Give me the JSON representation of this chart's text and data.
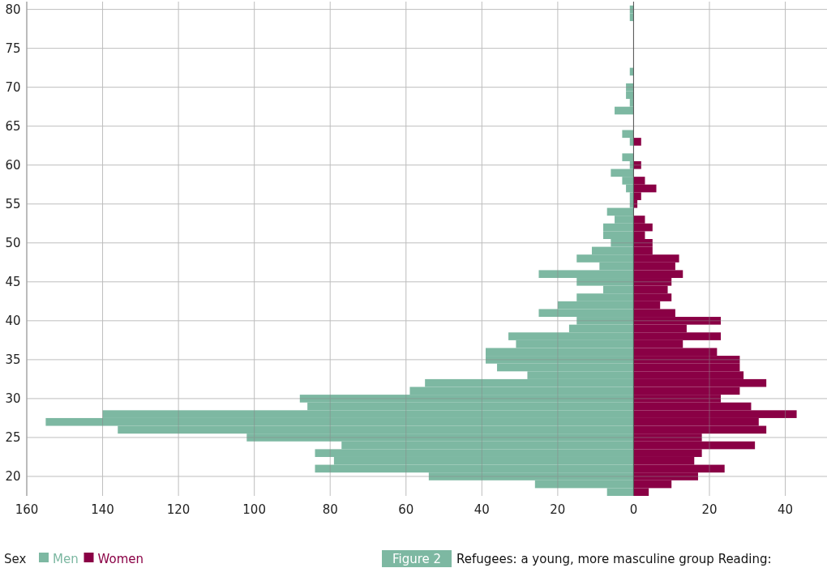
{
  "chart_data": {
    "type": "bar",
    "orientation": "horizontal",
    "stacked": true,
    "x": [
      18,
      19,
      20,
      21,
      22,
      23,
      24,
      25,
      26,
      27,
      28,
      29,
      30,
      31,
      32,
      33,
      34,
      35,
      36,
      37,
      38,
      39,
      40,
      41,
      42,
      43,
      44,
      45,
      46,
      47,
      48,
      49,
      50,
      51,
      52,
      53,
      54,
      55,
      56,
      57,
      58,
      59,
      60,
      61,
      62,
      63,
      64,
      65,
      66,
      67,
      68,
      69,
      70,
      71,
      72,
      73,
      74,
      75,
      76,
      77,
      78,
      79,
      80
    ],
    "series": [
      {
        "name": "Men",
        "color": "#7db8a2",
        "values": [
          -7,
          -26,
          -54,
          -84,
          -79,
          -84,
          -77,
          -102,
          -136,
          -155,
          -140,
          -86,
          -88,
          -59,
          -55,
          -28,
          -36,
          -39,
          -39,
          -31,
          -33,
          -17,
          -15,
          -25,
          -20,
          -15,
          -8,
          -15,
          -25,
          -9,
          -15,
          -11,
          -6,
          -8,
          -8,
          -5,
          -7,
          -1,
          -1,
          -2,
          -3,
          -6,
          -1,
          -3,
          null,
          -1,
          -3,
          null,
          null,
          -5,
          -1,
          -2,
          -2,
          null,
          -1,
          null,
          null,
          null,
          null,
          null,
          null,
          -1,
          -1
        ]
      },
      {
        "name": "Women",
        "color": "#8a0045",
        "values": [
          4,
          10,
          17,
          24,
          16,
          18,
          32,
          18,
          35,
          33,
          43,
          31,
          23,
          28,
          35,
          29,
          28,
          28,
          22,
          13,
          23,
          14,
          23,
          11,
          7,
          10,
          9,
          10,
          13,
          11,
          12,
          5,
          5,
          3,
          5,
          3,
          null,
          1,
          2,
          6,
          3,
          null,
          2,
          null,
          null,
          2,
          null,
          null,
          null,
          null,
          null,
          null,
          null,
          null,
          null,
          null,
          null,
          null,
          null,
          null,
          null,
          null,
          null
        ]
      }
    ],
    "xlim": [
      -160,
      51
    ],
    "xticks": [
      {
        "value": -160,
        "label": "160"
      },
      {
        "value": -140,
        "label": "140"
      },
      {
        "value": -120,
        "label": "120"
      },
      {
        "value": -100,
        "label": "100"
      },
      {
        "value": -80,
        "label": "80"
      },
      {
        "value": -60,
        "label": "60"
      },
      {
        "value": -40,
        "label": "40"
      },
      {
        "value": -20,
        "label": "20"
      },
      0,
      20,
      40
    ],
    "ylim": [
      17.5,
      81
    ],
    "yticks": [
      20,
      25,
      30,
      35,
      40,
      45,
      50,
      55,
      60,
      65,
      70,
      75,
      80
    ],
    "grid": true,
    "legend": "bottom left",
    "legend_title": "Sex",
    "annotations": [
      "Figure 2",
      "Refugees: a young, more masculine group Reading:"
    ]
  }
}
